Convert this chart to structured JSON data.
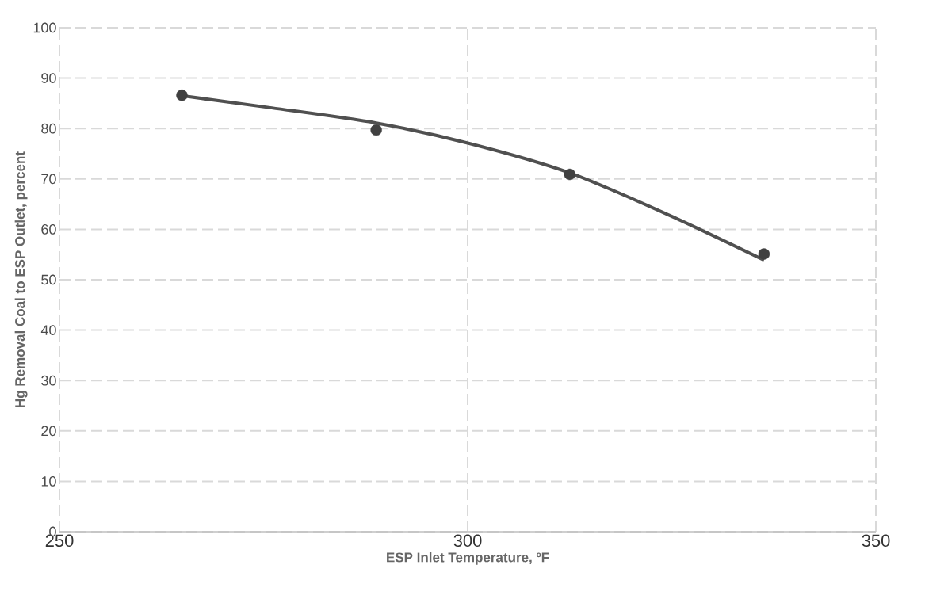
{
  "chart_data": {
    "type": "scatter",
    "xlabel": "ESP Inlet Temperature, ºF",
    "ylabel": "Hg Removal Coal to ESP Outlet, percent",
    "series": [
      {
        "color": "#404040",
        "x": [
          265.0,
          288.8,
          312.5,
          336.3
        ],
        "values": [
          86.6,
          79.7,
          70.9,
          55.1
        ]
      },
      {
        "type": "line",
        "color": "#505050",
        "x": [
          265.0,
          276.0,
          288.8,
          300.3,
          312.5,
          324.7,
          336.3
        ],
        "values": [
          86.5,
          84.1,
          81.1,
          77.0,
          71.2,
          62.8,
          53.9
        ],
        "line_style": "solid",
        "marker": "none"
      }
    ],
    "xlim": [
      250,
      350
    ],
    "xticks": [
      250,
      300,
      350
    ],
    "ylim": [
      0,
      100
    ],
    "yticks": [
      0,
      10,
      20,
      30,
      40,
      50,
      60,
      70,
      80,
      90,
      100
    ],
    "grid": true,
    "marker": "circle"
  }
}
